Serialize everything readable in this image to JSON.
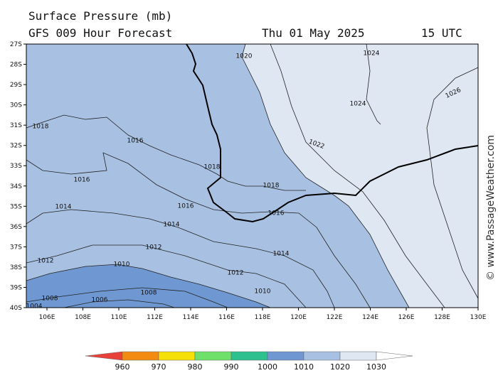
{
  "header": {
    "title": "Surface Pressure (mb)",
    "subtitle": "GFS 009 Hour Forecast",
    "date": "Thu 01 May 2025",
    "time": "15 UTC"
  },
  "axes": {
    "latitudes": [
      "27S",
      "28S",
      "29S",
      "30S",
      "31S",
      "32S",
      "33S",
      "34S",
      "35S",
      "36S",
      "37S",
      "38S",
      "39S",
      "40S"
    ],
    "longitudes": [
      "106E",
      "108E",
      "110E",
      "112E",
      "114E",
      "116E",
      "118E",
      "120E",
      "122E",
      "124E",
      "126E",
      "128E",
      "130E"
    ]
  },
  "isobar_labels": [
    "1020",
    "1024",
    "1024",
    "1026",
    "1018",
    "1016",
    "1018",
    "1016",
    "1018",
    "1014",
    "1016",
    "1016",
    "1014",
    "1012",
    "1014",
    "1012",
    "1010",
    "1012",
    "1008",
    "1008",
    "1010",
    "1006",
    "1004",
    "1022"
  ],
  "colorbar": {
    "labels": [
      "960",
      "970",
      "980",
      "990",
      "1000",
      "1010",
      "1020",
      "1030"
    ]
  },
  "credit": "© www.PassageWeather.com"
}
